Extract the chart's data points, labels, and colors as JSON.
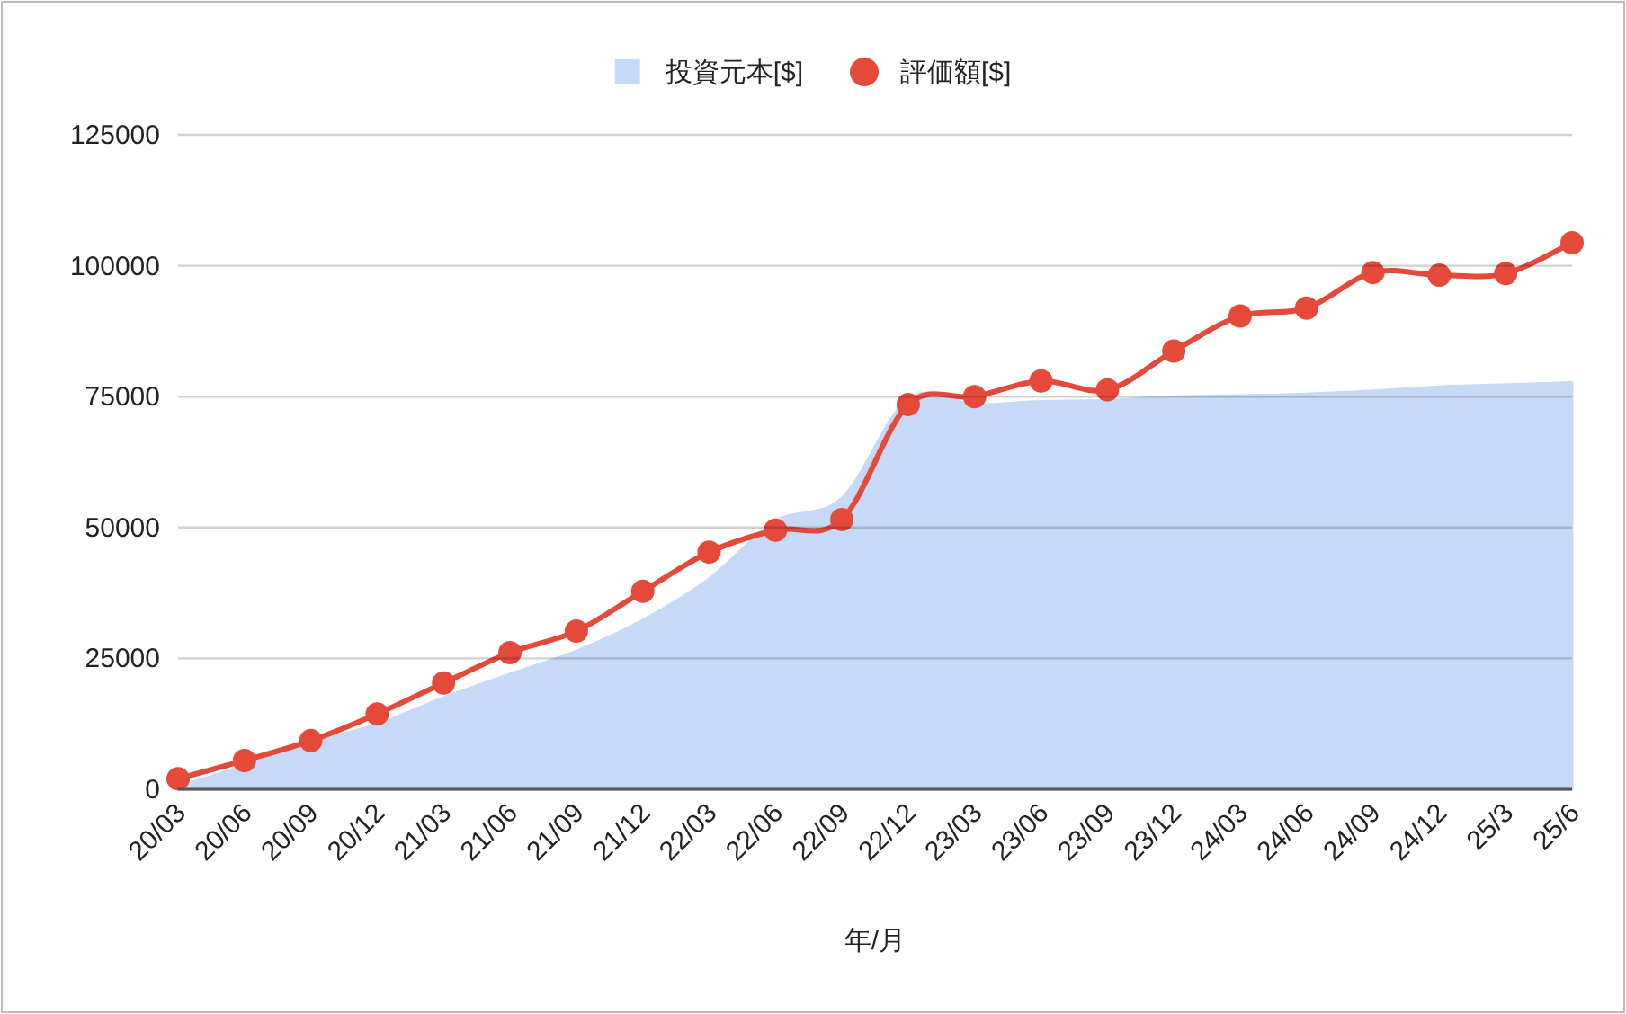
{
  "chart_data": {
    "type": "line",
    "xlabel": "年/月",
    "categories": [
      "20/03",
      "20/06",
      "20/09",
      "20/12",
      "21/03",
      "21/06",
      "21/09",
      "21/12",
      "22/03",
      "22/06",
      "22/09",
      "22/12",
      "23/03",
      "23/06",
      "23/09",
      "23/12",
      "24/03",
      "24/06",
      "24/09",
      "24/12",
      "25/3",
      "25/6"
    ],
    "series": [
      {
        "name": "投資元本[$]",
        "type": "area",
        "color": "#c6d9f7",
        "values": [
          500,
          4500,
          8900,
          12400,
          17500,
          22000,
          26400,
          32300,
          40200,
          51200,
          55600,
          74600,
          73500,
          74100,
          74300,
          75000,
          75200,
          75500,
          76100,
          76900,
          77300,
          77700
        ]
      },
      {
        "name": "評価額[$]",
        "color": "#e5493a",
        "marker": "circle",
        "values": [
          2000,
          5500,
          9300,
          14400,
          20300,
          26100,
          30200,
          37800,
          45300,
          49500,
          51500,
          73500,
          75000,
          78000,
          76300,
          83700,
          90400,
          91900,
          98700,
          98200,
          98500,
          104400
        ]
      }
    ],
    "ylim": [
      0,
      125000
    ],
    "yticks": [
      0,
      25000,
      50000,
      75000,
      100000,
      125000
    ],
    "grid": "y",
    "legend": "top"
  }
}
